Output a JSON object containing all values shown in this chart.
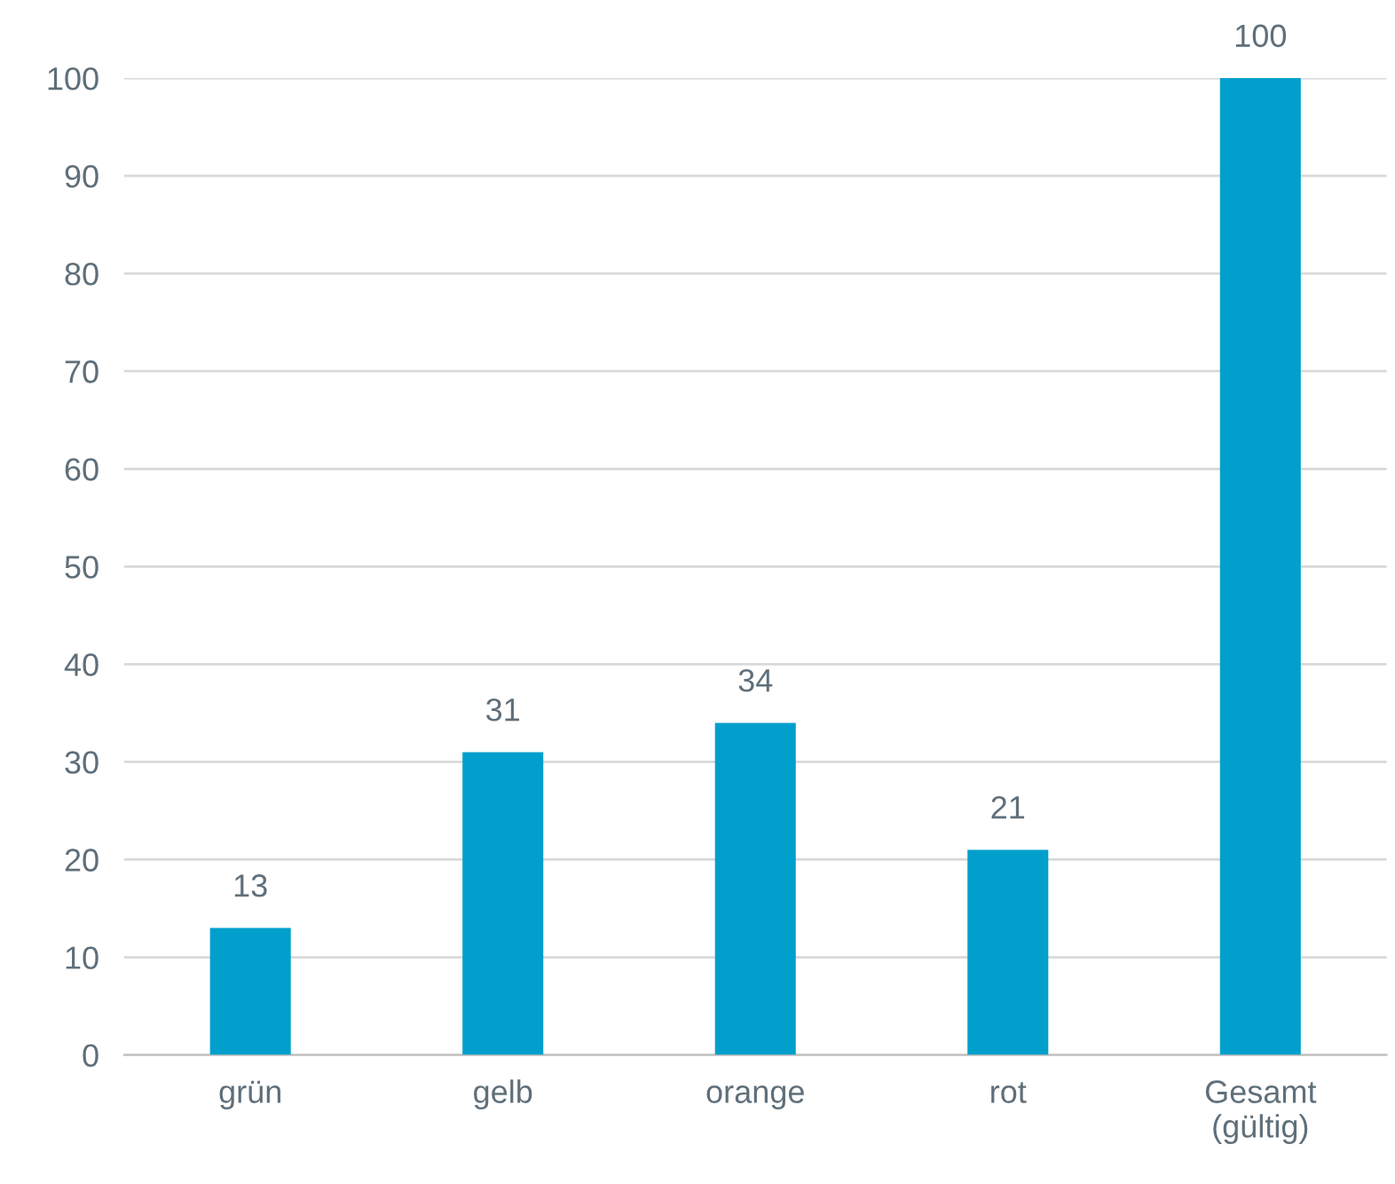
{
  "chart_data": {
    "type": "bar",
    "categories": [
      "grün",
      "gelb",
      "orange",
      "rot",
      "Gesamt\n(gültig)"
    ],
    "values": [
      13,
      31,
      34,
      21,
      100
    ],
    "color": "#009fcc",
    "ylim": [
      0,
      100
    ],
    "yticks": [
      0,
      10,
      20,
      30,
      40,
      50,
      60,
      70,
      80,
      90,
      100
    ],
    "grid": "y",
    "data_labels": true
  }
}
